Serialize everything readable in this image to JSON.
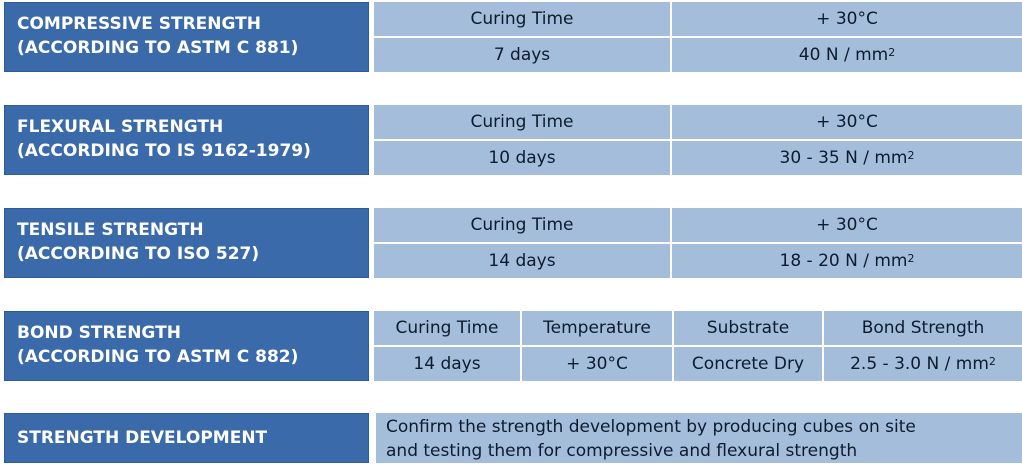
{
  "compressive": {
    "title": "COMPRESSIVE STRENGTH",
    "standard": "(ACCORDING TO ASTM C 881)",
    "headers": [
      "Curing Time",
      "+ 30°C"
    ],
    "values": [
      "7 days",
      "40 N / mm"
    ],
    "unit_exp": "2"
  },
  "flexural": {
    "title": "FLEXURAL STRENGTH",
    "standard": "(ACCORDING TO IS 9162-1979)",
    "headers": [
      "Curing Time",
      "+ 30°C"
    ],
    "values": [
      "10 days",
      "30 - 35 N / mm"
    ],
    "unit_exp": "2"
  },
  "tensile": {
    "title": "TENSILE STRENGTH",
    "standard": "(ACCORDING TO ISO 527)",
    "headers": [
      "Curing Time",
      "+ 30°C"
    ],
    "values": [
      "14 days",
      "18 - 20 N / mm"
    ],
    "unit_exp": "2"
  },
  "bond": {
    "title": "BOND STRENGTH",
    "standard": "(ACCORDING TO ASTM C 882)",
    "headers": [
      "Curing Time",
      "Temperature",
      "Substrate",
      "Bond Strength"
    ],
    "values": [
      "14 days",
      "+ 30°C",
      "Concrete Dry",
      "2.5 - 3.0 N / mm"
    ],
    "unit_exp": "2"
  },
  "development": {
    "title": "STRENGTH DEVELOPMENT",
    "note_line1": "Confirm the strength development by producing cubes on site",
    "note_line2": "and testing them for compressive and flexural strength"
  },
  "colors": {
    "label_bg": "#3a6aaa",
    "cell_bg": "#a3bddb",
    "label_text": "#ffffff",
    "cell_text": "#0d1b2e"
  }
}
